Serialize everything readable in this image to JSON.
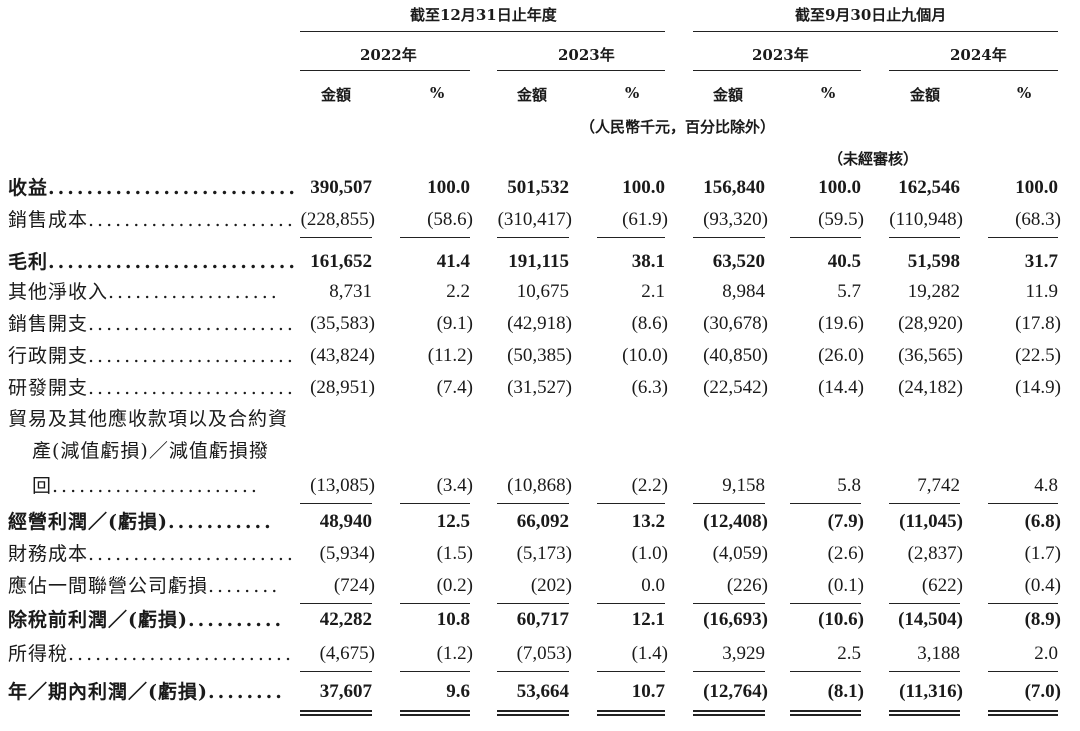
{
  "header": {
    "group1": "截至12月31日止年度",
    "group2": "截至9月30日止九個月",
    "years": [
      "2022年",
      "2023年",
      "2023年",
      "2024年"
    ],
    "col_amount": "金額",
    "col_pct": "%",
    "unit_note": "（人民幣千元，百分比除外）",
    "unaudited_note": "（未經審核）"
  },
  "rows": [
    {
      "label": "收益",
      "bold": true,
      "dots": "..........................",
      "values": [
        "390,507",
        "100.0",
        "501,532",
        "100.0",
        "156,840",
        "100.0",
        "162,546",
        "100.0"
      ]
    },
    {
      "label": "銷售成本",
      "bold": false,
      "dots": ".......................",
      "values": [
        "(228,855)",
        "(58.6)",
        "(310,417)",
        "(61.9)",
        "(93,320)",
        "(59.5)",
        "(110,948)",
        "(68.3)"
      ]
    },
    {
      "label": "毛利",
      "bold": true,
      "dots": "..........................",
      "values": [
        "161,652",
        "41.4",
        "191,115",
        "38.1",
        "63,520",
        "40.5",
        "51,598",
        "31.7"
      ]
    },
    {
      "label": "其他淨收入",
      "bold": false,
      "dots": "...................",
      "values": [
        "8,731",
        "2.2",
        "10,675",
        "2.1",
        "8,984",
        "5.7",
        "19,282",
        "11.9"
      ]
    },
    {
      "label": "銷售開支",
      "bold": false,
      "dots": ".......................",
      "values": [
        "(35,583)",
        "(9.1)",
        "(42,918)",
        "(8.6)",
        "(30,678)",
        "(19.6)",
        "(28,920)",
        "(17.8)"
      ]
    },
    {
      "label": "行政開支",
      "bold": false,
      "dots": ".......................",
      "values": [
        "(43,824)",
        "(11.2)",
        "(50,385)",
        "(10.0)",
        "(40,850)",
        "(26.0)",
        "(36,565)",
        "(22.5)"
      ]
    },
    {
      "label": "研發開支",
      "bold": false,
      "dots": ".......................",
      "values": [
        "(28,951)",
        "(7.4)",
        "(31,527)",
        "(6.3)",
        "(22,542)",
        "(14.4)",
        "(24,182)",
        "(14.9)"
      ]
    },
    {
      "label": "回",
      "bold": false,
      "dots": ".......................",
      "values": [
        "(13,085)",
        "(3.4)",
        "(10,868)",
        "(2.2)",
        "9,158",
        "5.8",
        "7,742",
        "4.8"
      ]
    },
    {
      "label": "經營利潤／(虧損)",
      "bold": true,
      "dots": "...........",
      "values": [
        "48,940",
        "12.5",
        "66,092",
        "13.2",
        "(12,408)",
        "(7.9)",
        "(11,045)",
        "(6.8)"
      ]
    },
    {
      "label": "財務成本",
      "bold": false,
      "dots": ".......................",
      "values": [
        "(5,934)",
        "(1.5)",
        "(5,173)",
        "(1.0)",
        "(4,059)",
        "(2.6)",
        "(2,837)",
        "(1.7)"
      ]
    },
    {
      "label": "應佔一間聯營公司虧損",
      "bold": false,
      "dots": "........",
      "values": [
        "(724)",
        "(0.2)",
        "(202)",
        "0.0",
        "(226)",
        "(0.1)",
        "(622)",
        "(0.4)"
      ]
    },
    {
      "label": "除稅前利潤／(虧損)",
      "bold": true,
      "dots": "..........",
      "values": [
        "42,282",
        "10.8",
        "60,717",
        "12.1",
        "(16,693)",
        "(10.6)",
        "(14,504)",
        "(8.9)"
      ]
    },
    {
      "label": "所得稅",
      "bold": false,
      "dots": ".........................",
      "values": [
        "(4,675)",
        "(1.2)",
        "(7,053)",
        "(1.4)",
        "3,929",
        "2.5",
        "3,188",
        "2.0"
      ]
    },
    {
      "label": "年／期內利潤／(虧損)",
      "bold": true,
      "dots": "........",
      "values": [
        "37,607",
        "9.6",
        "53,664",
        "10.7",
        "(12,764)",
        "(8.1)",
        "(11,316)",
        "(7.0)"
      ]
    }
  ],
  "multiline_label": [
    "貿易及其他應收款項以及合約資",
    "產(減值虧損)／減值虧損撥"
  ]
}
